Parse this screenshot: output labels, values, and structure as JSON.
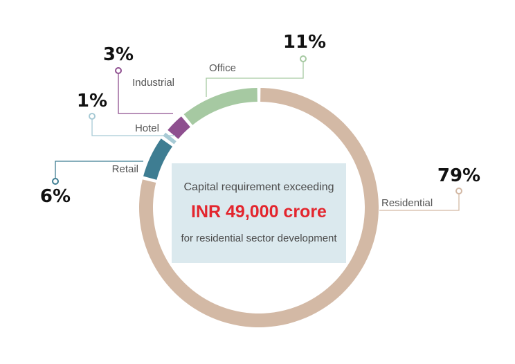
{
  "chart_data": {
    "type": "pie",
    "variant": "donut",
    "categories": [
      "Residential",
      "Retail",
      "Hotel",
      "Industrial",
      "Office"
    ],
    "values": [
      79,
      6,
      1,
      3,
      11
    ],
    "value_labels": [
      "79%",
      "6%",
      "1%",
      "3%",
      "11%"
    ],
    "colors": [
      "#d3b9a5",
      "#3e7d92",
      "#a7cad5",
      "#8e4f8f",
      "#a6c9a2"
    ],
    "legend": "none"
  },
  "center_text": {
    "line1": "Capital requirement exceeding",
    "line2": "INR 49,000 crore",
    "line3": "for residential sector development"
  }
}
